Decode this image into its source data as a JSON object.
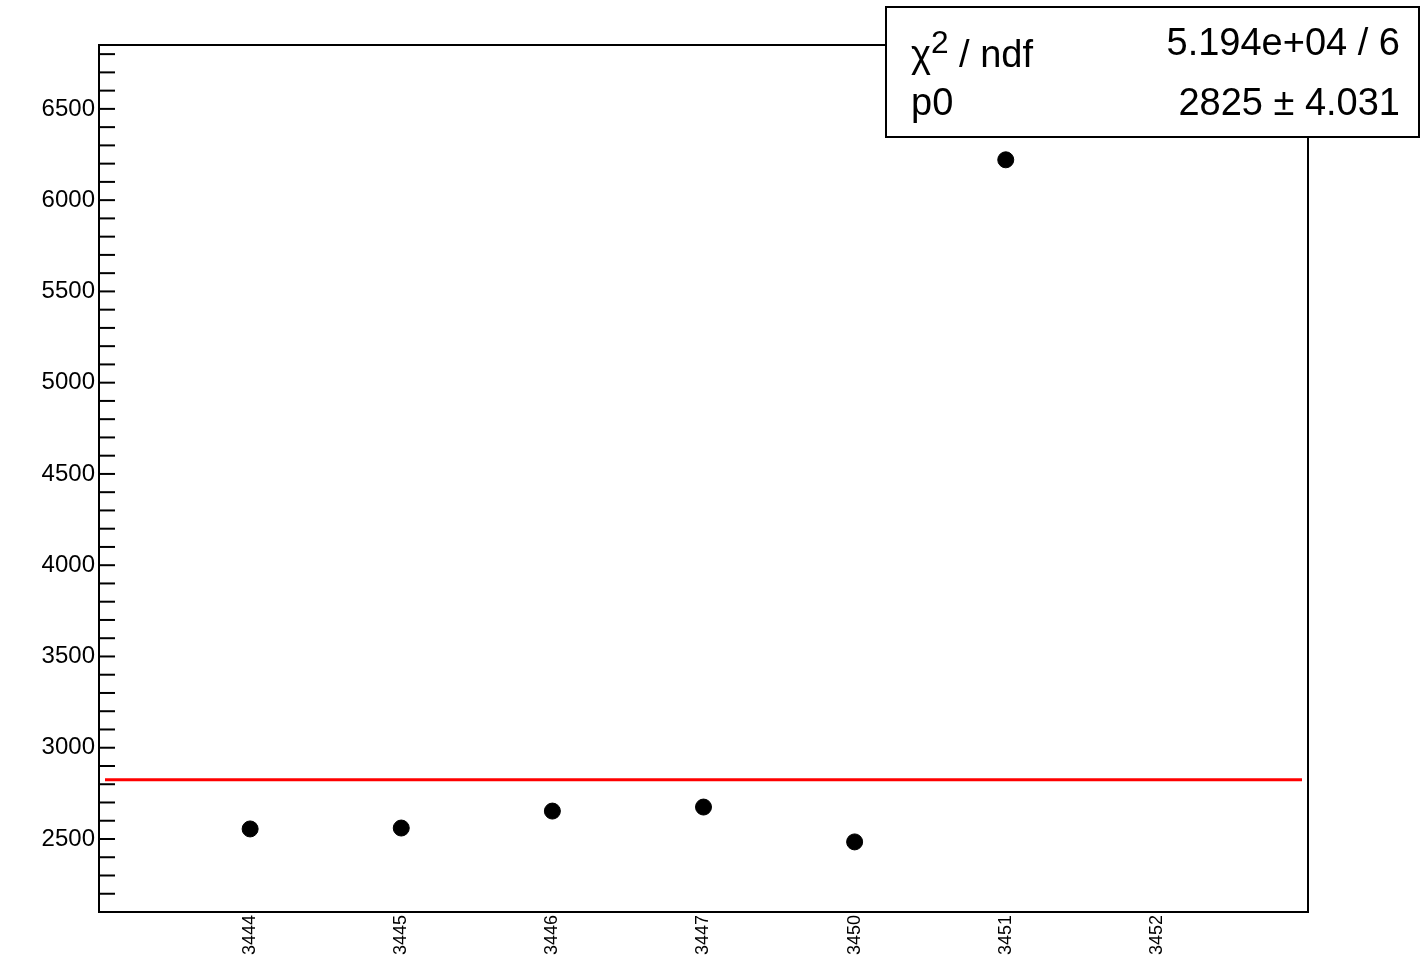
{
  "chart_data": {
    "type": "scatter",
    "marker": "circle",
    "grid": false,
    "legend": false,
    "categories": [
      "3444",
      "3445",
      "3446",
      "3447",
      "3450",
      "3451",
      "3452"
    ],
    "series": [
      {
        "color": "#000000",
        "values": [
          2555,
          2560,
          2653,
          2675,
          2484,
          6221,
          null
        ]
      }
    ],
    "ylim": [
      2100,
      6850
    ],
    "yticks": [
      {
        "value": 2100,
        "label": null
      },
      {
        "value": 2200,
        "label": null
      },
      {
        "value": 2300,
        "label": null
      },
      {
        "value": 2400,
        "label": null
      },
      2500,
      {
        "value": 2600,
        "label": null
      },
      {
        "value": 2700,
        "label": null
      },
      {
        "value": 2800,
        "label": null
      },
      {
        "value": 2900,
        "label": null
      },
      3000,
      {
        "value": 3100,
        "label": null
      },
      {
        "value": 3200,
        "label": null
      },
      {
        "value": 3300,
        "label": null
      },
      {
        "value": 3400,
        "label": null
      },
      3500,
      {
        "value": 3600,
        "label": null
      },
      {
        "value": 3700,
        "label": null
      },
      {
        "value": 3800,
        "label": null
      },
      {
        "value": 3900,
        "label": null
      },
      4000,
      {
        "value": 4100,
        "label": null
      },
      {
        "value": 4200,
        "label": null
      },
      {
        "value": 4300,
        "label": null
      },
      {
        "value": 4400,
        "label": null
      },
      4500,
      {
        "value": 4600,
        "label": null
      },
      {
        "value": 4700,
        "label": null
      },
      {
        "value": 4800,
        "label": null
      },
      {
        "value": 4900,
        "label": null
      },
      5000,
      {
        "value": 5100,
        "label": null
      },
      {
        "value": 5200,
        "label": null
      },
      {
        "value": 5300,
        "label": null
      },
      {
        "value": 5400,
        "label": null
      },
      5500,
      {
        "value": 5600,
        "label": null
      },
      {
        "value": 5700,
        "label": null
      },
      {
        "value": 5800,
        "label": null
      },
      {
        "value": 5900,
        "label": null
      },
      6000,
      {
        "value": 6100,
        "label": null
      },
      {
        "value": 6200,
        "label": null
      },
      {
        "value": 6300,
        "label": null
      },
      {
        "value": 6400,
        "label": null
      },
      6500,
      {
        "value": 6600,
        "label": null
      },
      {
        "value": 6700,
        "label": null
      },
      {
        "value": 6800,
        "label": null
      }
    ],
    "ref_lines": [
      {
        "axis": "y",
        "value": 2825,
        "color": "#ff0000",
        "line_style": "solid"
      }
    ],
    "annotations": [
      "χ$^{2}$ / ndf",
      "5.194e+04 / 6",
      "p0",
      "2825 ± 4.031"
    ]
  }
}
